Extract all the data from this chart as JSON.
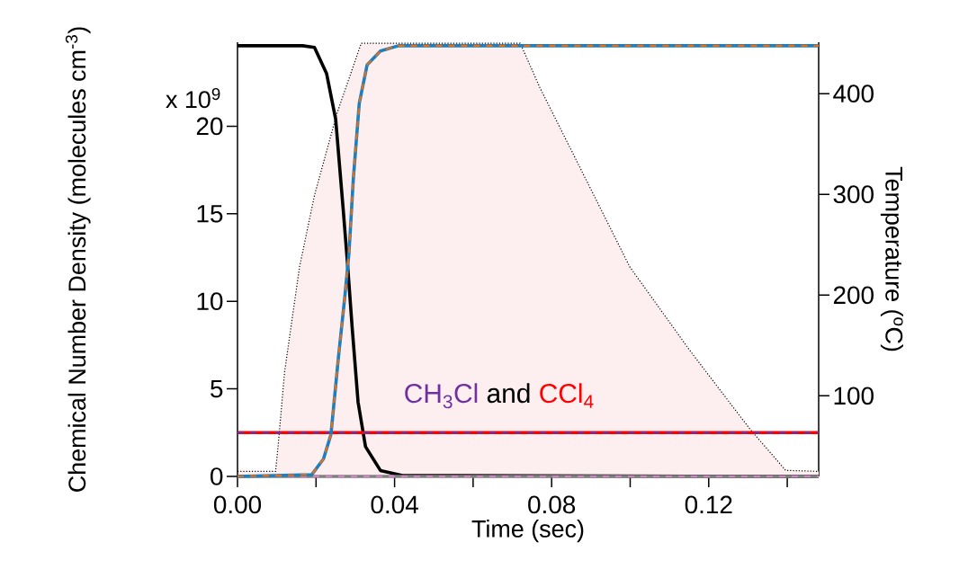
{
  "chart_data": {
    "type": "line",
    "xlabel": "Time (sec)",
    "ylabel": "Chemical Number Density (molecules cm$^{-3}$)",
    "y2label": "Temperature ($^{o}$C)",
    "annotations": [
      "x 10$^{9}$",
      "and"
    ],
    "xlim": [
      0,
      0.148
    ],
    "ylim": [
      0,
      24.8
    ],
    "y2lim": [
      20,
      451
    ],
    "xticks": [
      {
        "value": 0,
        "label": "0.00"
      },
      {
        "value": 0.02,
        "label": null
      },
      {
        "value": 0.04,
        "label": "0.04"
      },
      {
        "value": 0.06,
        "label": null
      },
      {
        "value": 0.08,
        "label": "0.08"
      },
      {
        "value": 0.1,
        "label": null
      },
      {
        "value": 0.12,
        "label": "0.12"
      },
      {
        "value": 0.14,
        "label": null
      }
    ],
    "yticks": [
      0,
      5,
      10,
      15,
      20
    ],
    "y2ticks": [
      100,
      200,
      300,
      400
    ],
    "series": [
      {
        "type": "area",
        "axis": "y2",
        "color": "#fdeff0",
        "x": [
          0,
          0.0097,
          0.0104,
          0.012,
          0.0158,
          0.0196,
          0.0253,
          0.0315,
          0.072,
          0.077,
          0.0846,
          0.0999,
          0.1152,
          0.1305,
          0.1396,
          0.148
        ],
        "values": [
          25,
          25,
          53,
          124,
          228,
          299,
          380,
          450,
          450,
          406,
          347,
          228,
          145,
          67,
          26,
          25
        ]
      },
      {
        "color": "#000000",
        "line_style": "solid",
        "x": [
          0,
          0.0166,
          0.0196,
          0.0227,
          0.025,
          0.0269,
          0.028,
          0.0292,
          0.0307,
          0.0326,
          0.0364,
          0.042,
          0.148
        ],
        "values": [
          24.6,
          24.6,
          24.5,
          23.0,
          20.4,
          15.3,
          12.2,
          8.5,
          4.25,
          1.7,
          0.34,
          0.05,
          0
        ]
      },
      {
        "color": "#808080",
        "line_style": "solid",
        "x": [
          0,
          0.148
        ],
        "values": [
          0,
          0
        ]
      },
      {
        "color": "#d97fc6",
        "line_style": "dashed",
        "x": [
          0,
          0.148
        ],
        "values": [
          0,
          0
        ]
      },
      {
        "name": "CCl$_{4}$",
        "color": "#ff0000",
        "line_style": "solid",
        "x": [
          0,
          0.148
        ],
        "values": [
          2.5,
          2.5
        ]
      },
      {
        "name": "CH$_{3}$Cl",
        "color": "#7030a0",
        "line_style": "dashed",
        "x": [
          0,
          0.148
        ],
        "values": [
          2.5,
          2.5
        ]
      },
      {
        "color": "#1b7fc0",
        "line_style": "solid",
        "x": [
          0,
          0.0189,
          0.0219,
          0.0238,
          0.0257,
          0.0273,
          0.0284,
          0.0295,
          0.031,
          0.033,
          0.0364,
          0.041,
          0.148
        ],
        "values": [
          0,
          0.1,
          1.0,
          2.4,
          6.8,
          10.2,
          12.8,
          17.0,
          21.3,
          23.5,
          24.3,
          24.6,
          24.6
        ]
      },
      {
        "color": "#e0701a",
        "line_style": "dashed",
        "x": [
          0,
          0.0189,
          0.0219,
          0.0238,
          0.0257,
          0.0273,
          0.0284,
          0.0295,
          0.031,
          0.033,
          0.0364,
          0.041,
          0.148
        ],
        "values": [
          0,
          0.1,
          1.0,
          2.4,
          6.8,
          10.2,
          12.8,
          17.0,
          21.3,
          23.5,
          24.3,
          24.6,
          24.6
        ]
      }
    ]
  }
}
